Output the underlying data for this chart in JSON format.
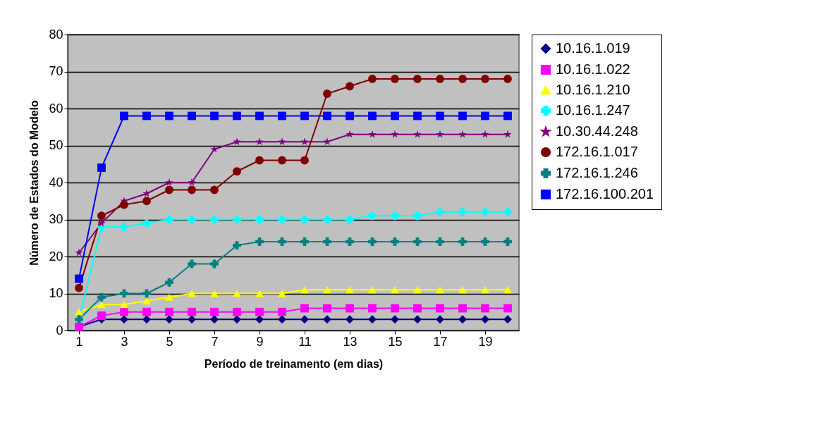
{
  "chart_data": {
    "type": "line",
    "xlabel": "Período de treinamento (em dias)",
    "ylabel": "Número de Estados do Modelo",
    "x": [
      1,
      2,
      3,
      4,
      5,
      6,
      7,
      8,
      9,
      10,
      11,
      12,
      13,
      14,
      15,
      16,
      17,
      18,
      19,
      20
    ],
    "xlim": [
      0.5,
      20.5
    ],
    "xticks": [
      1,
      3,
      5,
      7,
      9,
      11,
      13,
      15,
      17,
      19
    ],
    "ylim": [
      0,
      80
    ],
    "yticks": [
      0,
      10,
      20,
      30,
      40,
      50,
      60,
      70,
      80
    ],
    "grid": "y",
    "legend": "right",
    "series": [
      {
        "name": "10.16.1.019",
        "color": "#000080",
        "marker": "diamond",
        "values": [
          1,
          3,
          3,
          3,
          3,
          3,
          3,
          3,
          3,
          3,
          3,
          3,
          3,
          3,
          3,
          3,
          3,
          3,
          3,
          3
        ]
      },
      {
        "name": "10.16.1.022",
        "color": "#ff00ff",
        "marker": "square",
        "values": [
          1,
          4,
          5,
          5,
          5,
          5,
          5,
          5,
          5,
          5,
          6,
          6,
          6,
          6,
          6,
          6,
          6,
          6,
          6,
          6
        ]
      },
      {
        "name": "10.16.1.210",
        "color": "#ffff00",
        "marker": "triangle",
        "values": [
          5,
          7,
          7,
          8,
          9,
          10,
          10,
          10,
          10,
          10,
          11,
          11,
          11,
          11,
          11,
          11,
          11,
          11,
          11,
          11
        ]
      },
      {
        "name": "10.16.1.247",
        "color": "#00ffff",
        "marker": "cross",
        "values": [
          3,
          28,
          28,
          29,
          30,
          30,
          30,
          30,
          30,
          30,
          30,
          30,
          30,
          31,
          31,
          31,
          32,
          32,
          32,
          32
        ]
      },
      {
        "name": "10.30.44.248",
        "color": "#800080",
        "marker": "star",
        "values": [
          21,
          29,
          35,
          37,
          40,
          40,
          49,
          51,
          51,
          51,
          51,
          51,
          53,
          53,
          53,
          53,
          53,
          53,
          53,
          53
        ]
      },
      {
        "name": "172.16.1.017",
        "color": "#800000",
        "marker": "circle",
        "values": [
          11.5,
          31,
          34,
          35,
          38,
          38,
          38,
          43,
          46,
          46,
          46,
          64,
          66,
          68,
          68,
          68,
          68,
          68,
          68,
          68
        ]
      },
      {
        "name": "172.16.1.246",
        "color": "#008080",
        "marker": "cross",
        "values": [
          3,
          9,
          10,
          10,
          13,
          18,
          18,
          23,
          24,
          24,
          24,
          24,
          24,
          24,
          24,
          24,
          24,
          24,
          24,
          24
        ]
      },
      {
        "name": "172.16.100.201",
        "color": "#0000ff",
        "marker": "square",
        "values": [
          14,
          44,
          58,
          58,
          58,
          58,
          58,
          58,
          58,
          58,
          58,
          58,
          58,
          58,
          58,
          58,
          58,
          58,
          58,
          58
        ]
      }
    ]
  }
}
